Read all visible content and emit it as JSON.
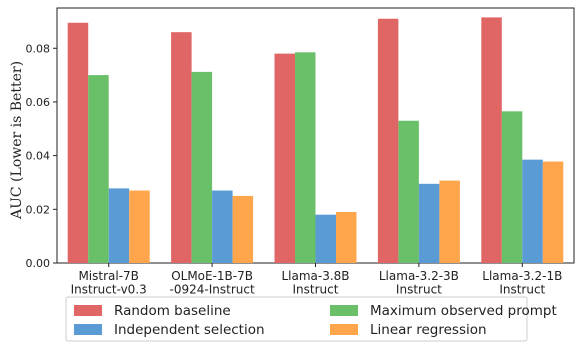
{
  "chart_data": {
    "type": "bar",
    "title": "",
    "xlabel": "",
    "ylabel": "AUC (Lower is Better)",
    "ylim": [
      0,
      0.095
    ],
    "yticks": [
      "0.00",
      "0.02",
      "0.04",
      "0.06",
      "0.08"
    ],
    "ytick_values": [
      0,
      0.02,
      0.04,
      0.06,
      0.08
    ],
    "grid": false,
    "legend_position": "bottom",
    "categories": [
      [
        "Mistral-7B",
        "Instruct-v0.3"
      ],
      [
        "OLMoE-1B-7B",
        "-0924-Instruct"
      ],
      [
        "Llama-3.8B",
        "Instruct"
      ],
      [
        "Llama-3.2-3B",
        "Instruct"
      ],
      [
        "Llama-3.2-1B",
        "Instruct"
      ]
    ],
    "series": [
      {
        "name": "Random baseline",
        "color": "#e06666",
        "values": [
          0.0895,
          0.086,
          0.078,
          0.091,
          0.0915
        ]
      },
      {
        "name": "Maximum observed prompt",
        "color": "#6abf69",
        "values": [
          0.07,
          0.0712,
          0.0785,
          0.053,
          0.0565
        ]
      },
      {
        "name": "Independent selection",
        "color": "#5b9bd5",
        "values": [
          0.0278,
          0.027,
          0.018,
          0.0295,
          0.0385
        ]
      },
      {
        "name": "Linear regression",
        "color": "#ffa64d",
        "values": [
          0.027,
          0.025,
          0.019,
          0.0307,
          0.0378
        ]
      }
    ]
  }
}
